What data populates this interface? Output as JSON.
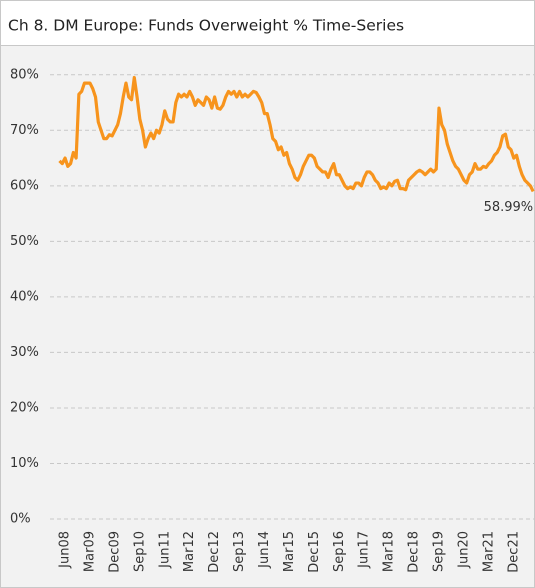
{
  "chart_data": {
    "type": "line",
    "title": "Ch 8. DM Europe:  Funds Overweight % Time-Series",
    "categories": [
      null,
      null,
      "Jun08",
      null,
      null,
      null,
      null,
      null,
      null,
      null,
      null,
      "Mar09",
      null,
      null,
      null,
      null,
      null,
      null,
      null,
      null,
      "Dec09",
      null,
      null,
      null,
      null,
      null,
      null,
      null,
      null,
      "Sep10",
      null,
      null,
      null,
      null,
      null,
      null,
      null,
      null,
      "Jun11",
      null,
      null,
      null,
      null,
      null,
      null,
      null,
      null,
      "Mar12",
      null,
      null,
      null,
      null,
      null,
      null,
      null,
      null,
      "Dec12",
      null,
      null,
      null,
      null,
      null,
      null,
      null,
      null,
      "Sep13",
      null,
      null,
      null,
      null,
      null,
      null,
      null,
      null,
      "Jun14",
      null,
      null,
      null,
      null,
      null,
      null,
      null,
      null,
      "Mar15",
      null,
      null,
      null,
      null,
      null,
      null,
      null,
      null,
      "Dec15",
      null,
      null,
      null,
      null,
      null,
      null,
      null,
      null,
      "Sep16",
      null,
      null,
      null,
      null,
      null,
      null,
      null,
      null,
      "Jun17",
      null,
      null,
      null,
      null,
      null,
      null,
      null,
      null,
      "Mar18",
      null,
      null,
      null,
      null,
      null,
      null,
      null,
      null,
      "Dec18",
      null,
      null,
      null,
      null,
      null,
      null,
      null,
      null,
      "Sep19",
      null,
      null,
      null,
      null,
      null,
      null,
      null,
      null,
      "Jun20",
      null,
      null,
      null,
      null,
      null,
      null,
      null,
      null,
      "Mar21",
      null,
      null,
      null,
      null,
      null,
      null,
      null,
      null,
      "Dec21",
      null,
      null,
      null,
      null,
      null,
      null,
      null
    ],
    "series": [
      {
        "name": "Funds Overweight %",
        "color": "#f7941d",
        "values": [
          64.5,
          64,
          65,
          63.5,
          64,
          66,
          65,
          76.5,
          77,
          78.5,
          78.5,
          78.5,
          77.5,
          76,
          71.5,
          70,
          68.5,
          68.5,
          69.2,
          69,
          70,
          71,
          73,
          76,
          78.5,
          76,
          75.5,
          79.5,
          76,
          72,
          70,
          67,
          68.5,
          69.5,
          68.5,
          70,
          69.5,
          71,
          73.5,
          72,
          71.5,
          71.5,
          75,
          76.5,
          76,
          76.5,
          76,
          77,
          76,
          74.5,
          75.5,
          75,
          74.5,
          76,
          75.5,
          74,
          76,
          74,
          73.8,
          74.5,
          76,
          77,
          76.5,
          77,
          76,
          77,
          76,
          76.5,
          76,
          76.5,
          77,
          76.8,
          76,
          75,
          73,
          73,
          71,
          68.5,
          68,
          66.5,
          67,
          65.5,
          66,
          64,
          63,
          61.5,
          61,
          62,
          63.5,
          64.5,
          65.5,
          65.5,
          65,
          63.5,
          63,
          62.5,
          62.5,
          61.5,
          63,
          64,
          62,
          62,
          61,
          60,
          59.5,
          59.8,
          59.5,
          60.5,
          60.5,
          60,
          61.5,
          62.5,
          62.5,
          62,
          61,
          60.5,
          59.5,
          59.8,
          59.5,
          60.5,
          60,
          60.8,
          61,
          59.5,
          59.5,
          59.3,
          61,
          61.5,
          62,
          62.5,
          62.8,
          62.5,
          62,
          62.5,
          63,
          62.5,
          63,
          74,
          71,
          70,
          67.5,
          66,
          64.5,
          63.5,
          63,
          62,
          61,
          60.5,
          62,
          62.5,
          64,
          63,
          63,
          63.5,
          63.3,
          64,
          64.5,
          65.5,
          66,
          67,
          69,
          69.3,
          67,
          66.5,
          65,
          65.5,
          63.5,
          62,
          61,
          60.5,
          60,
          58.99
        ],
        "value_labels": [
          null,
          null,
          null,
          null,
          null,
          null,
          null,
          null,
          null,
          null,
          null,
          null,
          null,
          null,
          null,
          null,
          null,
          null,
          null,
          null,
          null,
          null,
          null,
          null,
          null,
          null,
          null,
          null,
          null,
          null,
          null,
          null,
          null,
          null,
          null,
          null,
          null,
          null,
          null,
          null,
          null,
          null,
          null,
          null,
          null,
          null,
          null,
          null,
          null,
          null,
          null,
          null,
          null,
          null,
          null,
          null,
          null,
          null,
          null,
          null,
          null,
          null,
          null,
          null,
          null,
          null,
          null,
          null,
          null,
          null,
          null,
          null,
          null,
          null,
          null,
          null,
          null,
          null,
          null,
          null,
          null,
          null,
          null,
          null,
          null,
          null,
          null,
          null,
          null,
          null,
          null,
          null,
          null,
          null,
          null,
          null,
          null,
          null,
          null,
          null,
          null,
          null,
          null,
          null,
          null,
          null,
          null,
          null,
          null,
          null,
          null,
          null,
          null,
          null,
          null,
          null,
          null,
          null,
          null,
          null,
          null,
          null,
          null,
          null,
          null,
          null,
          null,
          null,
          null,
          null,
          null,
          null,
          null,
          null,
          null,
          null,
          null,
          null,
          null,
          null,
          null,
          null,
          null,
          null,
          null,
          null,
          null,
          null,
          null,
          null,
          null,
          null,
          null,
          null,
          null,
          null,
          null,
          null,
          null,
          null,
          null,
          null,
          null,
          null,
          null,
          null,
          null,
          null,
          null,
          null,
          null,
          "58.99%"
        ]
      }
    ],
    "ylim": [
      0,
      85
    ],
    "yticks": [
      {
        "value": 0,
        "label": "0%"
      },
      {
        "value": 10,
        "label": "10%"
      },
      {
        "value": 20,
        "label": "20%"
      },
      {
        "value": 30,
        "label": "30%"
      },
      {
        "value": 40,
        "label": "40%"
      },
      {
        "value": 50,
        "label": "50%"
      },
      {
        "value": 60,
        "label": "60%"
      },
      {
        "value": 70,
        "label": "70%"
      },
      {
        "value": 80,
        "label": "80%"
      }
    ],
    "grid": true
  }
}
